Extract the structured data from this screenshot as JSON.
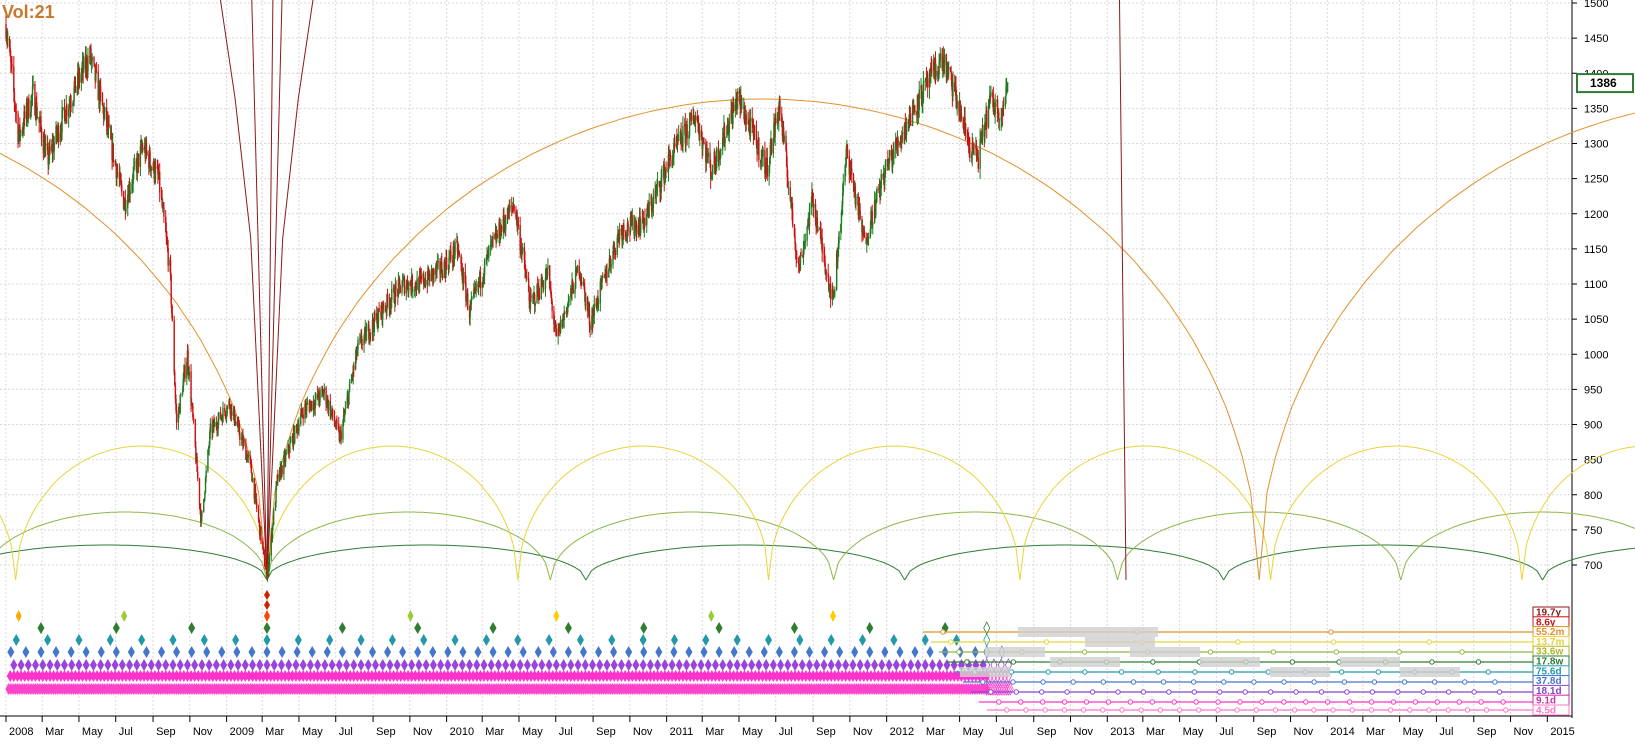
{
  "header": {
    "volatility_label": "Vol:21"
  },
  "price_tag": {
    "value": "1386"
  },
  "colors": {
    "up": "#1f7a1f",
    "down": "#cc1111",
    "grid": "#d8d8d8",
    "cycle_long": "#8b1a1a",
    "cycle_orange": "#e0922c",
    "cycle_yellow": "#e8d33a",
    "cycle_lightgreen": "#8bb84a",
    "cycle_green": "#2e7d32",
    "diamond_pink": "#ff33cc",
    "diamond_purple": "#8844cc",
    "diamond_blue": "#3366cc",
    "price_tag_border": "#2e7d32"
  },
  "chart_data": {
    "type": "candlestick",
    "title": "",
    "ylabel": "",
    "ylim": [
      660,
      1500
    ],
    "y_ticks": [
      700,
      750,
      800,
      850,
      900,
      950,
      1000,
      1050,
      1100,
      1150,
      1200,
      1250,
      1300,
      1350,
      1400,
      1450,
      1500
    ],
    "x_start": "2008-01-01",
    "x_end": "2015-02-01",
    "x_ticks": [
      "2008",
      "Mar",
      "May",
      "Jul",
      "Sep",
      "Nov",
      "2009",
      "Mar",
      "May",
      "Jul",
      "Sep",
      "Nov",
      "2010",
      "Mar",
      "May",
      "Jul",
      "Sep",
      "Nov",
      "2011",
      "Mar",
      "May",
      "Jul",
      "Sep",
      "Nov",
      "2012",
      "Mar",
      "May",
      "Jul",
      "Sep",
      "Nov",
      "2013",
      "Mar",
      "May",
      "Jul",
      "Sep",
      "Nov",
      "2014",
      "Mar",
      "May",
      "Jul",
      "Sep",
      "Nov",
      "2015"
    ],
    "x_tick_dates": [
      "2008-01",
      "2008-03",
      "2008-05",
      "2008-07",
      "2008-09",
      "2008-11",
      "2009-01",
      "2009-03",
      "2009-05",
      "2009-07",
      "2009-09",
      "2009-11",
      "2010-01",
      "2010-03",
      "2010-05",
      "2010-07",
      "2010-09",
      "2010-11",
      "2011-01",
      "2011-03",
      "2011-05",
      "2011-07",
      "2011-09",
      "2011-11",
      "2012-01",
      "2012-03",
      "2012-05",
      "2012-07",
      "2012-09",
      "2012-11",
      "2013-01",
      "2013-03",
      "2013-05",
      "2013-07",
      "2013-09",
      "2013-11",
      "2014-01",
      "2014-03",
      "2014-05",
      "2014-07",
      "2014-09",
      "2014-11",
      "2015-01"
    ],
    "price_path": [
      [
        "2008-01-01",
        1470
      ],
      [
        "2008-01-22",
        1310
      ],
      [
        "2008-02-15",
        1370
      ],
      [
        "2008-03-10",
        1275
      ],
      [
        "2008-04-10",
        1350
      ],
      [
        "2008-05-19",
        1425
      ],
      [
        "2008-06-15",
        1330
      ],
      [
        "2008-07-15",
        1215
      ],
      [
        "2008-08-15",
        1295
      ],
      [
        "2008-09-10",
        1250
      ],
      [
        "2008-09-29",
        1120
      ],
      [
        "2008-10-10",
        900
      ],
      [
        "2008-10-28",
        1000
      ],
      [
        "2008-11-20",
        760
      ],
      [
        "2008-12-05",
        890
      ],
      [
        "2009-01-06",
        930
      ],
      [
        "2009-02-10",
        840
      ],
      [
        "2009-03-09",
        680
      ],
      [
        "2009-03-26",
        820
      ],
      [
        "2009-05-08",
        920
      ],
      [
        "2009-06-12",
        945
      ],
      [
        "2009-07-08",
        880
      ],
      [
        "2009-08-07",
        1010
      ],
      [
        "2009-09-18",
        1065
      ],
      [
        "2009-10-20",
        1100
      ],
      [
        "2009-11-16",
        1100
      ],
      [
        "2009-12-28",
        1125
      ],
      [
        "2010-01-19",
        1150
      ],
      [
        "2010-02-08",
        1060
      ],
      [
        "2010-03-15",
        1150
      ],
      [
        "2010-04-23",
        1215
      ],
      [
        "2010-05-20",
        1070
      ],
      [
        "2010-06-18",
        1115
      ],
      [
        "2010-07-02",
        1020
      ],
      [
        "2010-08-09",
        1125
      ],
      [
        "2010-08-27",
        1045
      ],
      [
        "2010-10-15",
        1175
      ],
      [
        "2010-11-26",
        1190
      ],
      [
        "2011-01-05",
        1275
      ],
      [
        "2011-02-18",
        1340
      ],
      [
        "2011-03-16",
        1260
      ],
      [
        "2011-04-29",
        1365
      ],
      [
        "2011-06-16",
        1265
      ],
      [
        "2011-07-07",
        1355
      ],
      [
        "2011-08-08",
        1120
      ],
      [
        "2011-08-31",
        1220
      ],
      [
        "2011-10-04",
        1075
      ],
      [
        "2011-10-27",
        1290
      ],
      [
        "2011-11-25",
        1160
      ],
      [
        "2011-12-29",
        1260
      ],
      [
        "2012-02-15",
        1350
      ],
      [
        "2012-04-02",
        1420
      ],
      [
        "2012-04-20",
        1380
      ],
      [
        "2012-05-18",
        1295
      ],
      [
        "2012-06-01",
        1280
      ],
      [
        "2012-06-20",
        1360
      ],
      [
        "2012-07-10",
        1345
      ],
      [
        "2012-07-20",
        1386
      ]
    ],
    "lows": [
      "2008-01-22",
      "2008-03-17",
      "2008-08-05",
      "2008-11-20",
      "2009-03-09",
      "2009-07-10",
      "2009-11-02",
      "2010-02-08",
      "2010-07-02",
      "2010-11-16",
      "2011-03-16",
      "2011-06-16",
      "2011-10-04",
      "2011-12-19",
      "2012-06-04"
    ],
    "cycle_labels": [
      "19.7y",
      "8.6y",
      "55.2m",
      "13.7m",
      "33.6w",
      "17.8w",
      "75.6d",
      "37.8d",
      "18.1d",
      "9.1d",
      "4.5d"
    ],
    "last_price": 1386
  }
}
